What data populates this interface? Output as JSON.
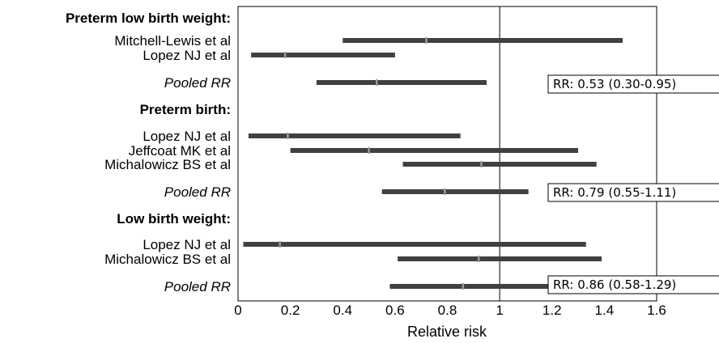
{
  "chart_data": {
    "type": "forest",
    "xlabel": "Relative risk",
    "xlim": [
      0,
      1.6
    ],
    "x_ticks": [
      0,
      0.2,
      0.4,
      0.6,
      0.8,
      1,
      1.2,
      1.4,
      1.6
    ],
    "reference_line": 1,
    "groups": [
      {
        "title": "Preterm low birth weight:",
        "studies": [
          {
            "label": "Mitchell-Lewis et al",
            "estimate": 0.72,
            "low": 0.4,
            "high": 1.47
          },
          {
            "label": "Lopez NJ et al",
            "estimate": 0.18,
            "low": 0.05,
            "high": 0.6
          }
        ],
        "pooled": {
          "label": "Pooled RR",
          "estimate": 0.53,
          "low": 0.3,
          "high": 0.95,
          "text": "RR: 0.53 (0.30-0.95)"
        }
      },
      {
        "title": "Preterm birth:",
        "studies": [
          {
            "label": "Lopez NJ et al",
            "estimate": 0.19,
            "low": 0.04,
            "high": 0.85
          },
          {
            "label": "Jeffcoat MK et al",
            "estimate": 0.5,
            "low": 0.2,
            "high": 1.3
          },
          {
            "label": "Michalowicz BS et al",
            "estimate": 0.93,
            "low": 0.63,
            "high": 1.37
          }
        ],
        "pooled": {
          "label": "Pooled RR",
          "estimate": 0.79,
          "low": 0.55,
          "high": 1.11,
          "text": "RR: 0.79 (0.55-1.11)"
        }
      },
      {
        "title": "Low birth weight:",
        "studies": [
          {
            "label": "Lopez NJ et al",
            "estimate": 0.16,
            "low": 0.02,
            "high": 1.33
          },
          {
            "label": "Michalowicz BS et al",
            "estimate": 0.92,
            "low": 0.61,
            "high": 1.39
          }
        ],
        "pooled": {
          "label": "Pooled RR",
          "estimate": 0.86,
          "low": 0.58,
          "high": 1.29,
          "text": "RR: 0.86 (0.58-1.29)"
        }
      }
    ]
  }
}
